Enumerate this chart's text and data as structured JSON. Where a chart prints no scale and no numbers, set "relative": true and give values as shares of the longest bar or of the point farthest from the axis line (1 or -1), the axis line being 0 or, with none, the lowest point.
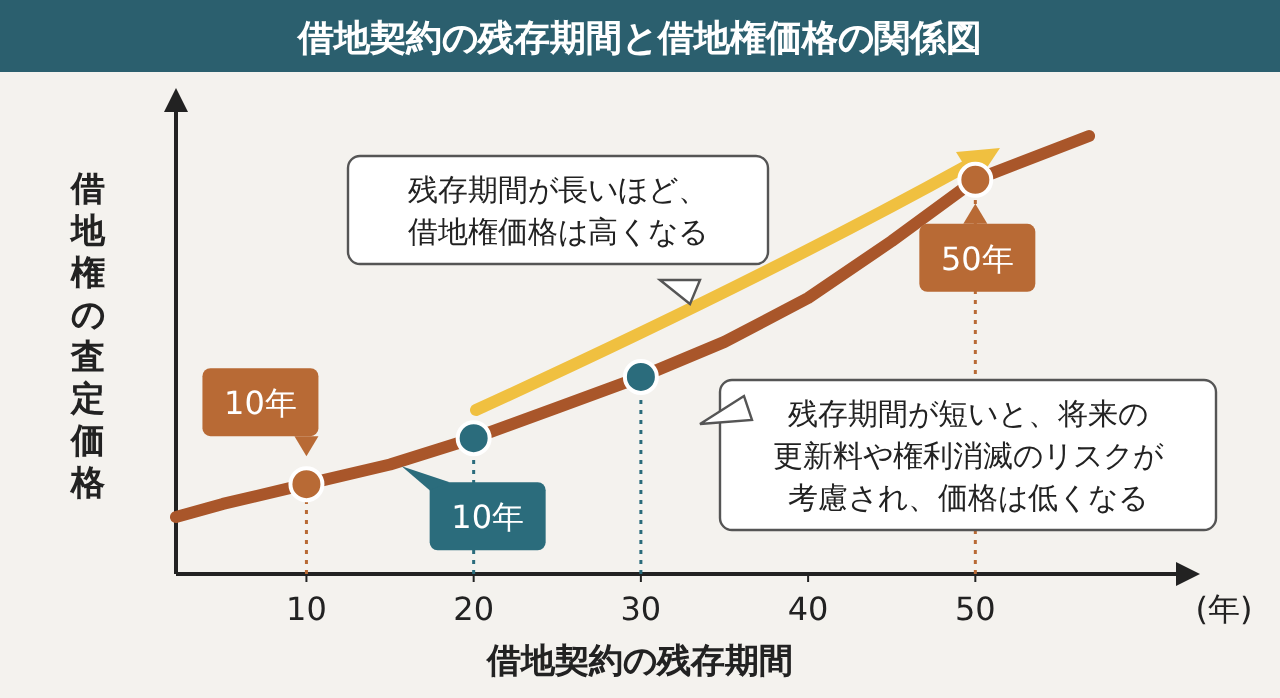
{
  "chart_data": {
    "type": "line",
    "title": "借地契約の残存期間と借地権価格の関係図",
    "xlabel": "借地契約の残存期間",
    "ylabel": "借地権の査定価格",
    "relative": true,
    "xlim": [
      2.2,
      62
    ],
    "xticks": [
      10,
      20,
      30,
      40,
      50
    ],
    "grid": false,
    "series": [
      {
        "color": "#a9562a",
        "x": [
          2.2,
          5,
          10,
          15,
          20,
          25,
          30,
          35,
          40,
          45,
          50,
          56.8
        ],
        "values": [
          0.13,
          0.16,
          0.205,
          0.25,
          0.31,
          0.38,
          0.45,
          0.53,
          0.63,
          0.76,
          0.9,
          1
        ]
      },
      {
        "type": "scatter",
        "marker": "circle",
        "x": [
          10,
          20,
          30,
          50
        ],
        "values": [
          0.205,
          0.31,
          0.45,
          0.9
        ],
        "colors": [
          "#b86a35",
          "#2b6c7c",
          "#2b6c7c",
          "#b86a35"
        ]
      }
    ],
    "ref_lines": [
      {
        "axis": "x",
        "value": 10,
        "color": "#b86a35",
        "line_style": "dotted"
      },
      {
        "axis": "x",
        "value": 20,
        "color": "#2b6c7c",
        "line_style": "dotted"
      },
      {
        "axis": "x",
        "value": 30,
        "color": "#2b6c7c",
        "line_style": "dotted"
      },
      {
        "axis": "x",
        "value": 50,
        "color": "#b86a35",
        "line_style": "dotted"
      }
    ],
    "annotations": [
      {
        "text": "10年",
        "x": 10,
        "y": 0.205
      },
      {
        "text": "10年",
        "x": 20,
        "y": 0.31
      },
      {
        "text": "50年",
        "x": 50,
        "y": 0.9
      },
      "残存期間が長いほど、借地権価格は高くなる",
      "残存期間が短いと、将来の更新料や権利消滅のリスクが考慮され、価格は低くなる",
      "(年)"
    ]
  }
}
